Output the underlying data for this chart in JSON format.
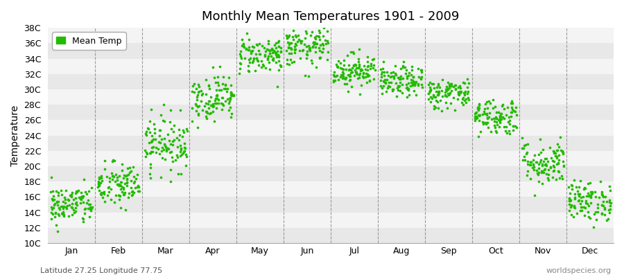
{
  "title": "Monthly Mean Temperatures 1901 - 2009",
  "ylabel": "Temperature",
  "subtitle": "Latitude 27.25 Longitude 77.75",
  "watermark": "worldspecies.org",
  "legend_label": "Mean Temp",
  "marker_color": "#22bb00",
  "bg_color": "#ffffff",
  "plot_bg_color": "#ffffff",
  "ylim": [
    10,
    38
  ],
  "ytick_labels": [
    "10C",
    "12C",
    "14C",
    "16C",
    "18C",
    "20C",
    "22C",
    "24C",
    "26C",
    "28C",
    "30C",
    "32C",
    "34C",
    "36C",
    "38C"
  ],
  "ytick_values": [
    10,
    12,
    14,
    16,
    18,
    20,
    22,
    24,
    26,
    28,
    30,
    32,
    34,
    36,
    38
  ],
  "months": [
    "Jan",
    "Feb",
    "Mar",
    "Apr",
    "May",
    "Jun",
    "Jul",
    "Aug",
    "Sep",
    "Oct",
    "Nov",
    "Dec"
  ],
  "month_means": [
    15.0,
    17.5,
    23.0,
    29.0,
    34.5,
    35.5,
    32.5,
    31.0,
    29.5,
    26.5,
    20.5,
    15.5
  ],
  "month_stds": [
    1.3,
    1.5,
    1.8,
    1.5,
    1.2,
    1.3,
    1.1,
    1.0,
    1.0,
    1.2,
    1.5,
    1.3
  ],
  "n_years": 109,
  "random_seed": 42,
  "grid_color": "#777777",
  "stripe_colors": [
    "#e8e8e8",
    "#f4f4f4"
  ]
}
